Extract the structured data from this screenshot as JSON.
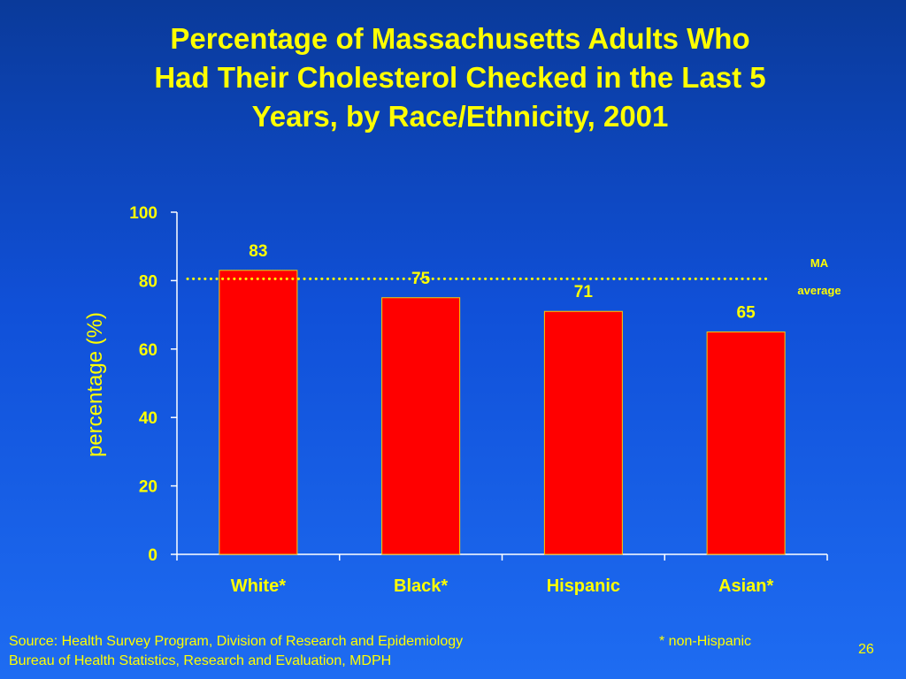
{
  "slide": {
    "title_lines": [
      "Percentage of Massachusetts Adults Who",
      "Had Their Cholesterol Checked in the Last 5",
      "Years, by Race/Ethnicity, 2001"
    ],
    "footer_lines": [
      "Source: Health Survey Program, Division of Research and Epidemiology",
      "Bureau of Health Statistics, Research and Evaluation, MDPH"
    ],
    "footnote": "* non-Hispanic",
    "page_number": "26"
  },
  "chart_data": {
    "type": "bar",
    "title": "Percentage of Massachusetts Adults Who Had Their Cholesterol Checked in the Last 5 Years, by Race/Ethnicity, 2001",
    "categories": [
      "White*",
      "Black*",
      "Hispanic",
      "Asian*"
    ],
    "values": [
      83,
      75,
      71,
      65
    ],
    "value_labels": [
      "83",
      "75",
      "71",
      "65"
    ],
    "ylabel": "percentage (%)",
    "xlabel": "",
    "ylim": [
      0,
      100
    ],
    "yticks": [
      0,
      20,
      40,
      60,
      80,
      100
    ],
    "grid": false,
    "reference_line": {
      "value": 80,
      "label_lines": [
        "MA",
        "average"
      ],
      "style": "dotted"
    },
    "colors": {
      "bar": "#ff0000",
      "bar_edge": "#ffcc00",
      "text": "#ffff00",
      "axis": "#ffffff",
      "reference": "#ffff00"
    }
  }
}
